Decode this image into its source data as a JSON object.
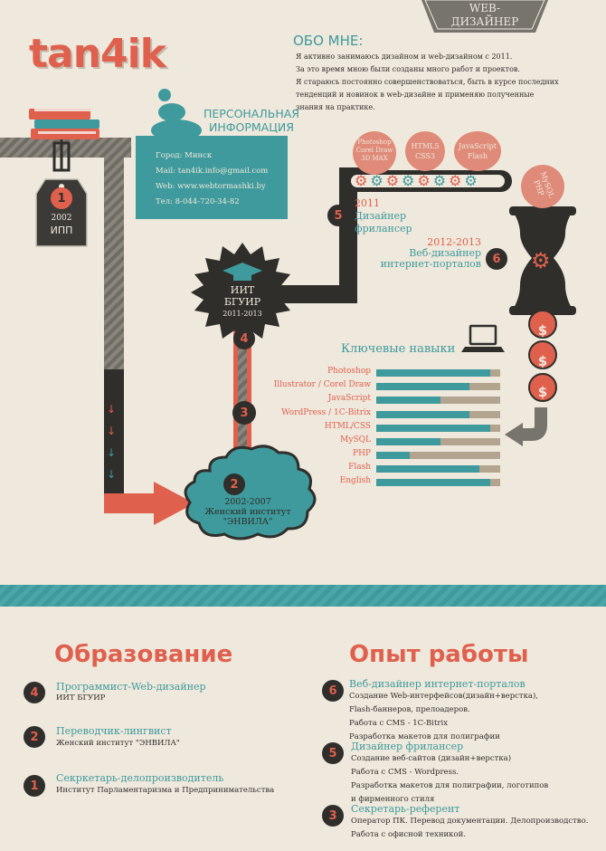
{
  "header": {
    "logo": "tan4ik",
    "badge_line1": "WEB-",
    "badge_line2": "ДИЗАЙНЕР"
  },
  "about": {
    "title": "ОБО МНЕ:",
    "lines": [
      "Я активно занимаюсь дизайном и web-дизайном с 2011.",
      "За это время мною были созданы много работ и проектов.",
      "Я стараюсь постоянно совершенствоваться, быть в курсе последних",
      "тенденций и новинок в web-дизайне и применяю полученные",
      "знания на практике."
    ]
  },
  "personal": {
    "title_line1": "ПЕРСОНАЛЬНАЯ",
    "title_line2": "ИНФОРМАЦИЯ",
    "city_label": "Город:",
    "city": "Минск",
    "mail_label": "Mail:",
    "mail": "tan4ik.info@gmail.com",
    "web_label": "Web:",
    "web": "www.webtormashki.by",
    "phone_label": "Тел:",
    "phone": "8-044-720-34-82"
  },
  "timeline": {
    "n1": "1",
    "y1": "2002",
    "t1": "ИПП",
    "n2": "2",
    "y2": "2002-2007",
    "t2a": "Женский институт",
    "t2b": "\"ЭНВИЛА\"",
    "n3": "3",
    "n4": "4",
    "t4a": "ИИТ",
    "t4b": "БГУИР",
    "y4": "2011-2013",
    "n5": "5",
    "y5": "2011",
    "t5a": "Дизайнер",
    "t5b": "фрилансер",
    "n6": "6",
    "y6": "2012-2013",
    "t6a": "Веб-дизайнер",
    "t6b": "интернет-порталов"
  },
  "bubbles": {
    "b1a": "Photoshop",
    "b1b": "Corel Draw",
    "b1c": "3D MAX",
    "b2a": "HTML5",
    "b2b": "CSS3",
    "b3a": "JavaScript",
    "b3b": "Flash",
    "b4a": "MySQL",
    "b4b": "PHP"
  },
  "skills": {
    "title": "Ключевые навыки",
    "items": [
      {
        "label": "Photoshop",
        "level": 0.92
      },
      {
        "label": "Illustrator / Corel Draw",
        "level": 0.75
      },
      {
        "label": "JavaScript",
        "level": 0.52
      },
      {
        "label": "WordPress / 1C-Bitrix",
        "level": 0.75
      },
      {
        "label": "HTML/CSS",
        "level": 0.92
      },
      {
        "label": "MySQL",
        "level": 0.52
      },
      {
        "label": "PHP",
        "level": 0.27
      },
      {
        "label": "Flash",
        "level": 0.83
      },
      {
        "label": "English",
        "level": 0.92
      }
    ]
  },
  "education": {
    "title": "Образование",
    "entries": [
      {
        "num": "4",
        "title": "Программист-Web-дизайнер",
        "lines": [
          "ИИТ БГУИР"
        ]
      },
      {
        "num": "2",
        "title": "Переводчик-лингвист",
        "lines": [
          "Женский институт \"ЭНВИЛА\""
        ]
      },
      {
        "num": "1",
        "title": "Секркетарь-делопроизводитель",
        "lines": [
          "Институт Парламентаризма и Предпринимательства"
        ]
      }
    ]
  },
  "experience": {
    "title": "Опыт работы",
    "entries": [
      {
        "num": "6",
        "title": "Веб-дизайнер интернет-порталов",
        "lines": [
          "Создание Web-интерфейсов(дизайн+верстка),",
          "Flash-баннеров, прелоадеров.",
          "Работа с CMS - 1C-Bitrix",
          "Разработка макетов для полиграфии"
        ]
      },
      {
        "num": "5",
        "title": "Дизайнер фрилансер",
        "lines": [
          "Создание веб-сайтов (дизайн+верстка)",
          "Работа с CMS - Wordpress.",
          "Разработка макетов для полиграфии, логотипов",
          "и фирменного стиля"
        ]
      },
      {
        "num": "3",
        "title": "Секретарь-референт",
        "lines": [
          "Оператор ПК. Перевод документации. Делопроизводство.",
          "Работа с офисной техникой."
        ]
      }
    ]
  },
  "colors": {
    "teal": "#3e9a9c",
    "coral": "#e0604e",
    "dark": "#2f2e2b",
    "background": "#efe8dc"
  }
}
